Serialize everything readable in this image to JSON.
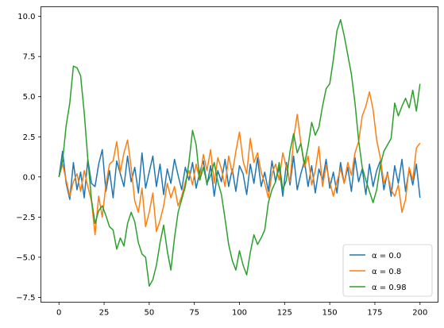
{
  "chart_data": {
    "type": "line",
    "title": "",
    "xlabel": "",
    "ylabel": "",
    "xlim": [
      -10,
      210
    ],
    "ylim": [
      -7.8,
      10.6
    ],
    "x_ticks": [
      0,
      25,
      50,
      75,
      100,
      125,
      150,
      175,
      200
    ],
    "y_ticks": [
      -7.5,
      -5.0,
      -2.5,
      0.0,
      2.5,
      5.0,
      7.5,
      10.0
    ],
    "y_tick_labels": [
      "−7.5",
      "−5.0",
      "−2.5",
      "0.0",
      "2.5",
      "5.0",
      "7.5",
      "10.0"
    ],
    "legend_position": "lower-right",
    "grid": false,
    "series": [
      {
        "name": "α = 0.0",
        "color": "#1f77b4",
        "x": [
          0,
          2,
          4,
          6,
          8,
          10,
          12,
          14,
          16,
          18,
          20,
          22,
          24,
          26,
          28,
          30,
          32,
          34,
          36,
          38,
          40,
          42,
          44,
          46,
          48,
          50,
          52,
          54,
          56,
          58,
          60,
          62,
          64,
          66,
          68,
          70,
          72,
          74,
          76,
          78,
          80,
          82,
          84,
          86,
          88,
          90,
          92,
          94,
          96,
          98,
          100,
          102,
          104,
          106,
          108,
          110,
          112,
          114,
          116,
          118,
          120,
          122,
          124,
          126,
          128,
          130,
          132,
          134,
          136,
          138,
          140,
          142,
          144,
          146,
          148,
          150,
          152,
          154,
          156,
          158,
          160,
          162,
          164,
          166,
          168,
          170,
          172,
          174,
          176,
          178,
          180,
          182,
          184,
          186,
          188,
          190,
          192,
          194,
          196,
          198,
          200
        ],
        "values": [
          0.0,
          1.6,
          -0.4,
          -1.4,
          0.9,
          -0.8,
          0.3,
          -1.3,
          1.1,
          -0.4,
          -0.6,
          0.8,
          1.7,
          -0.9,
          0.4,
          -1.3,
          1.0,
          0.2,
          -0.6,
          1.3,
          -0.3,
          0.6,
          -1.0,
          1.5,
          -0.7,
          0.3,
          1.3,
          -0.6,
          0.8,
          -1.1,
          0.5,
          -0.4,
          1.1,
          0.1,
          -0.8,
          0.6,
          -0.2,
          0.9,
          -0.7,
          0.3,
          1.0,
          -0.5,
          0.7,
          -1.2,
          0.4,
          -0.3,
          1.1,
          -0.6,
          0.5,
          -0.9,
          0.7,
          0.2,
          -1.1,
          0.8,
          -0.4,
          1.2,
          -0.6,
          0.3,
          -0.9,
          1.0,
          -0.3,
          0.6,
          -1.2,
          0.9,
          -0.5,
          1.3,
          -0.8,
          0.2,
          1.0,
          -0.6,
          0.7,
          -1.0,
          0.5,
          -0.2,
          1.1,
          -0.7,
          0.3,
          -1.0,
          0.9,
          -0.4,
          0.6,
          -0.9,
          1.2,
          -0.3,
          0.5,
          -1.1,
          0.8,
          -0.6,
          0.4,
          1.0,
          -0.8,
          0.3,
          -1.2,
          0.7,
          -0.4,
          1.1,
          -0.9,
          0.5,
          -0.5,
          0.8,
          -1.3
        ]
      },
      {
        "name": "α = 0.8",
        "color": "#ff7f0e",
        "x": [
          0,
          2,
          4,
          6,
          8,
          10,
          12,
          14,
          16,
          18,
          20,
          22,
          24,
          26,
          28,
          30,
          32,
          34,
          36,
          38,
          40,
          42,
          44,
          46,
          48,
          50,
          52,
          54,
          56,
          58,
          60,
          62,
          64,
          66,
          68,
          70,
          72,
          74,
          76,
          78,
          80,
          82,
          84,
          86,
          88,
          90,
          92,
          94,
          96,
          98,
          100,
          102,
          104,
          106,
          108,
          110,
          112,
          114,
          116,
          118,
          120,
          122,
          124,
          126,
          128,
          130,
          132,
          134,
          136,
          138,
          140,
          142,
          144,
          146,
          148,
          150,
          152,
          154,
          156,
          158,
          160,
          162,
          164,
          166,
          168,
          170,
          172,
          174,
          176,
          178,
          180,
          182,
          184,
          186,
          188,
          190,
          192,
          194,
          196,
          198,
          200
        ],
        "values": [
          0.0,
          0.8,
          -0.2,
          -1.2,
          -0.3,
          0.2,
          -0.9,
          0.4,
          -0.6,
          -1.5,
          -3.6,
          -1.2,
          -2.5,
          -0.5,
          0.8,
          1.0,
          2.2,
          0.3,
          1.5,
          2.3,
          0.6,
          -1.5,
          -2.2,
          -0.7,
          -3.1,
          -2.2,
          -1.0,
          -3.4,
          -2.7,
          -1.8,
          -0.4,
          -1.3,
          -0.6,
          -1.8,
          -1.2,
          -0.3,
          0.4,
          -0.5,
          0.8,
          -0.2,
          1.4,
          0.4,
          1.7,
          -0.4,
          1.2,
          0.5,
          -0.6,
          1.3,
          0.2,
          1.6,
          2.8,
          1.0,
          0.2,
          2.4,
          0.9,
          1.5,
          0.3,
          -0.4,
          -1.3,
          0.2,
          0.8,
          -0.2,
          1.5,
          0.6,
          -0.3,
          2.4,
          3.9,
          2.1,
          0.6,
          1.3,
          -0.5,
          0.4,
          1.9,
          -0.6,
          0.7,
          -0.3,
          -1.2,
          -0.3,
          0.5,
          -0.4,
          0.9,
          0.1,
          1.5,
          2.2,
          3.8,
          4.4,
          5.3,
          4.2,
          2.3,
          1.2,
          -0.4,
          0.2,
          -0.8,
          -1.2,
          -0.5,
          -2.2,
          -1.4,
          0.6,
          -0.2,
          1.8,
          2.1
        ]
      },
      {
        "name": "α = 0.98",
        "color": "#2ca02c",
        "x": [
          0,
          2,
          4,
          6,
          8,
          10,
          12,
          14,
          16,
          18,
          20,
          22,
          24,
          26,
          28,
          30,
          32,
          34,
          36,
          38,
          40,
          42,
          44,
          46,
          48,
          50,
          52,
          54,
          56,
          58,
          60,
          62,
          64,
          66,
          68,
          70,
          72,
          74,
          76,
          78,
          80,
          82,
          84,
          86,
          88,
          90,
          92,
          94,
          96,
          98,
          100,
          102,
          104,
          106,
          108,
          110,
          112,
          114,
          116,
          118,
          120,
          122,
          124,
          126,
          128,
          130,
          132,
          134,
          136,
          138,
          140,
          142,
          144,
          146,
          148,
          150,
          152,
          154,
          156,
          158,
          160,
          162,
          164,
          166,
          168,
          170,
          172,
          174,
          176,
          178,
          180,
          182,
          184,
          186,
          188,
          190,
          192,
          194,
          196,
          198,
          200
        ],
        "values": [
          0.0,
          1.0,
          3.2,
          4.6,
          6.9,
          6.8,
          6.3,
          4.0,
          1.1,
          -1.4,
          -2.9,
          -2.1,
          -1.8,
          -2.4,
          -3.1,
          -3.3,
          -4.5,
          -3.8,
          -4.3,
          -2.9,
          -2.2,
          -2.8,
          -4.1,
          -4.8,
          -5.0,
          -6.8,
          -6.4,
          -5.5,
          -4.1,
          -3.0,
          -4.6,
          -5.8,
          -3.8,
          -2.2,
          -1.4,
          -0.6,
          0.9,
          2.9,
          2.0,
          -0.2,
          0.6,
          -0.4,
          0.1,
          0.9,
          -0.3,
          -1.1,
          -2.6,
          -4.2,
          -5.2,
          -5.8,
          -4.6,
          -5.5,
          -6.1,
          -4.7,
          -3.6,
          -4.2,
          -3.8,
          -3.3,
          -1.6,
          -0.8,
          -0.3,
          0.9,
          -0.8,
          -0.2,
          1.6,
          2.7,
          1.5,
          2.1,
          0.8,
          1.9,
          3.4,
          2.6,
          3.1,
          4.4,
          5.5,
          5.8,
          7.3,
          9.1,
          9.8,
          8.8,
          7.6,
          6.4,
          4.6,
          2.3,
          0.6,
          -0.2,
          -0.9,
          -1.6,
          -0.8,
          0.7,
          1.6,
          2.0,
          2.4,
          4.6,
          3.8,
          4.4,
          4.9,
          4.3,
          5.4,
          4.1,
          5.8
        ]
      }
    ]
  }
}
